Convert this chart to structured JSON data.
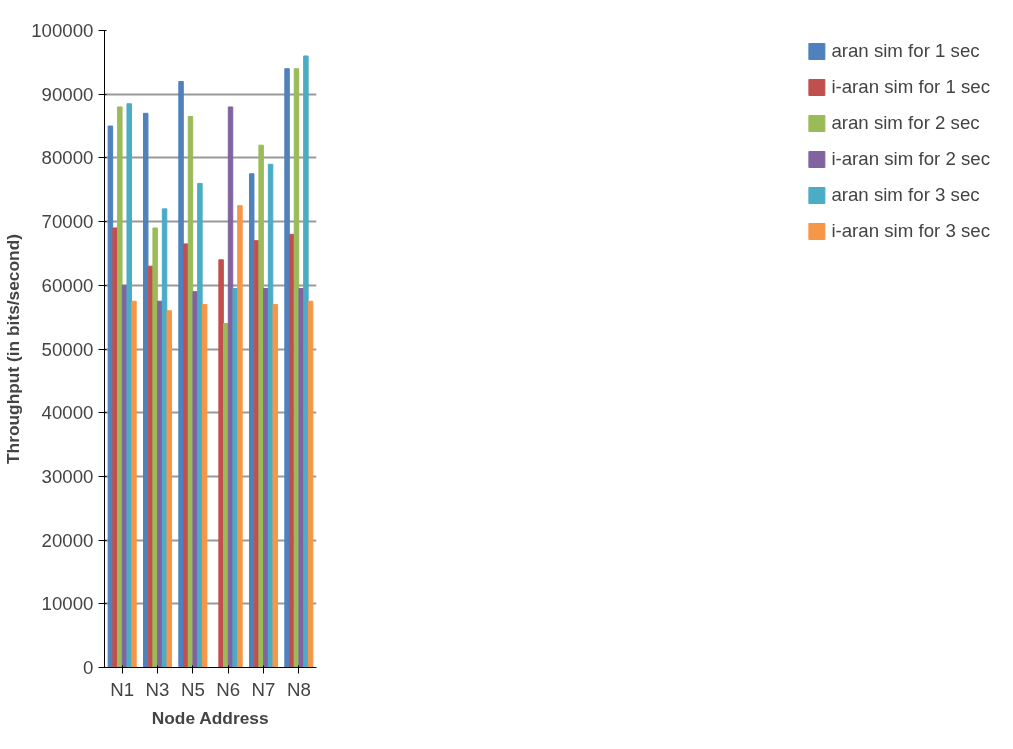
{
  "chart_data": {
    "type": "bar",
    "xlabel": "Node Address",
    "ylabel": "Throughput (in bits/second)",
    "categories": [
      "N1",
      "N3",
      "N5",
      "N6",
      "N7",
      "N8"
    ],
    "series": [
      {
        "name": "aran sim for 1 sec",
        "color": "#4f81bd",
        "values": [
          85000,
          87000,
          92000,
          0,
          77500,
          94000
        ]
      },
      {
        "name": "i-aran sim for 1 sec",
        "color": "#c0504d",
        "values": [
          69000,
          63000,
          66500,
          64000,
          67000,
          68000
        ]
      },
      {
        "name": "aran sim for 2 sec",
        "color": "#9bbb59",
        "values": [
          88000,
          69000,
          86500,
          54000,
          82000,
          94000
        ]
      },
      {
        "name": "i-aran sim for 2 sec",
        "color": "#8064a2",
        "values": [
          60000,
          57500,
          59000,
          88000,
          59500,
          59500
        ]
      },
      {
        "name": "aran sim for 3 sec",
        "color": "#4bacc6",
        "values": [
          88500,
          72000,
          76000,
          59500,
          79000,
          96000
        ]
      },
      {
        "name": "i-aran sim for 3 sec",
        "color": "#f79646",
        "values": [
          57500,
          56000,
          57000,
          72500,
          57000,
          57500
        ]
      }
    ],
    "ylim": [
      0,
      100000
    ],
    "yticks": [
      0,
      10000,
      20000,
      30000,
      40000,
      50000,
      60000,
      70000,
      80000,
      90000,
      100000
    ],
    "grid": "y",
    "legend": "right"
  }
}
